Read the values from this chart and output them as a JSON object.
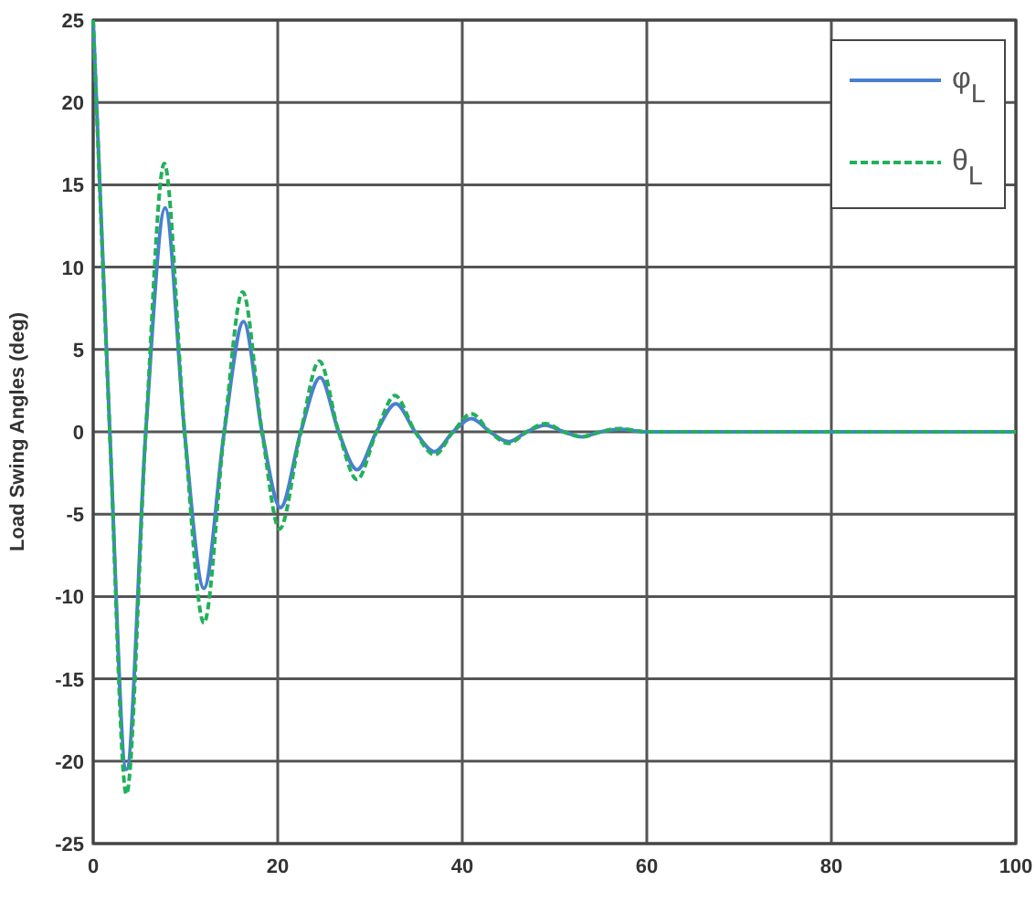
{
  "chart_data": {
    "type": "line",
    "ylabel": "Load Swing Angles (deg)",
    "xlim": [
      0,
      100
    ],
    "ylim": [
      -25,
      25
    ],
    "xticks": [
      0,
      20,
      40,
      60,
      80,
      100
    ],
    "yticks": [
      -25,
      -20,
      -15,
      -10,
      -5,
      0,
      5,
      10,
      15,
      20,
      25
    ],
    "grid": true,
    "legend": "top right",
    "series": [
      {
        "name": "φ$_{L}$",
        "color": "#4a7fd0",
        "line_style": "solid",
        "x": [
          0,
          1.8,
          3.6,
          5.7,
          7.8,
          9.9,
          12,
          14.2,
          16.3,
          18.3,
          20.3,
          22.5,
          24.6,
          26.6,
          28.6,
          30.7,
          32.8,
          34.9,
          37,
          39,
          41,
          43,
          45,
          47,
          49,
          51,
          53,
          55,
          57,
          60,
          100
        ],
        "values": [
          25,
          0,
          -20.5,
          0,
          13.6,
          0,
          -9.5,
          0,
          6.7,
          0,
          -4.6,
          0,
          3.3,
          0,
          -2.3,
          0,
          1.7,
          0,
          -1.2,
          0,
          0.8,
          0,
          -0.6,
          0,
          0.4,
          0,
          -0.3,
          0,
          0.15,
          0,
          0
        ]
      },
      {
        "name": "θ$_{L}$",
        "color": "#22b05a",
        "line_style": "dashed",
        "x": [
          0,
          1.8,
          3.6,
          5.7,
          7.7,
          9.9,
          12,
          14.2,
          16.2,
          18.3,
          20.2,
          22.5,
          24.5,
          26.6,
          28.6,
          30.7,
          32.7,
          34.9,
          37,
          39,
          41,
          43,
          45,
          47,
          49,
          51,
          53,
          55,
          57,
          60,
          100
        ],
        "values": [
          25,
          0,
          -22,
          0,
          16.3,
          0,
          -11.6,
          0,
          8.5,
          0,
          -5.9,
          0,
          4.3,
          0,
          -2.9,
          0,
          2.2,
          0,
          -1.4,
          0,
          1.1,
          0,
          -0.7,
          0,
          0.5,
          0,
          -0.3,
          0,
          0.2,
          0,
          0
        ]
      }
    ]
  }
}
